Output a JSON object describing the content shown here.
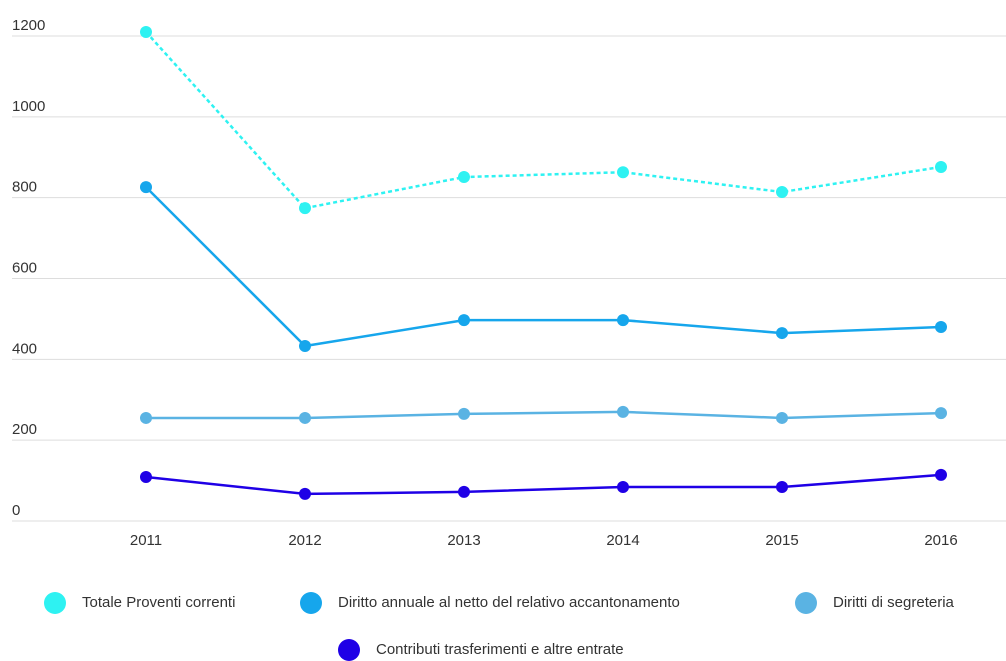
{
  "chart_data": {
    "type": "line",
    "x": [
      "2011",
      "2012",
      "2013",
      "2014",
      "2015",
      "2016"
    ],
    "series": [
      {
        "name": "Totale Proventi correnti",
        "color": "#2ef2f2",
        "dashed": true,
        "values": [
          1210,
          774,
          851,
          863,
          814,
          876
        ]
      },
      {
        "name": "Diritto annuale al netto del relativo accantonamento",
        "color": "#16a6ec",
        "dashed": false,
        "values": [
          826,
          433,
          497,
          497,
          465,
          480
        ]
      },
      {
        "name": "Diritti di segreteria",
        "color": "#5ab3e3",
        "dashed": false,
        "values": [
          255,
          255,
          265,
          270,
          255,
          267
        ]
      },
      {
        "name": "Contributi trasferimenti e altre entrate",
        "color": "#1f00e6",
        "dashed": false,
        "values": [
          109,
          67,
          72,
          84,
          84,
          114
        ]
      }
    ],
    "ylim": [
      0,
      1200
    ],
    "yticks": [
      0,
      200,
      400,
      600,
      800,
      1000,
      1200
    ],
    "grid": true,
    "legend": "bottom"
  }
}
